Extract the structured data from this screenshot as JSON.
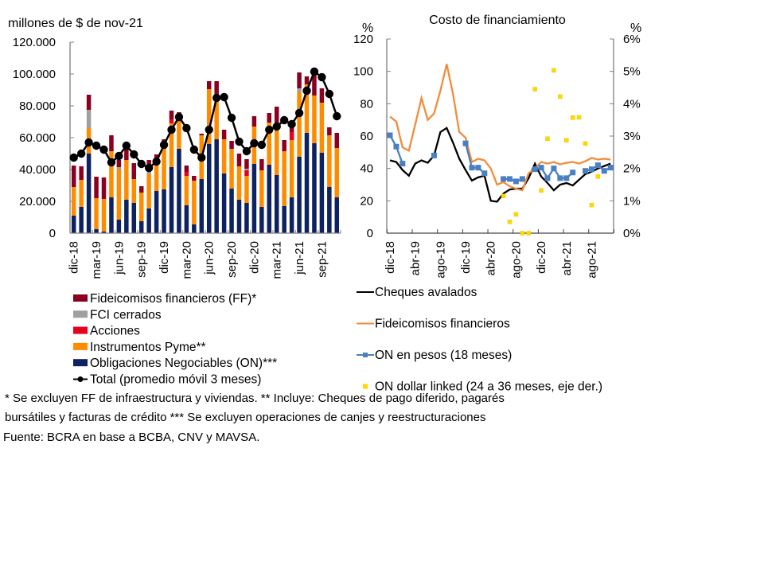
{
  "chart_data": [
    {
      "type": "bar",
      "stacked": true,
      "title": "",
      "ylabel": "millones de $ de nov-21",
      "ylim": [
        0,
        120000
      ],
      "yticks": [
        "0",
        "20.000",
        "40.000",
        "60.000",
        "80.000",
        "100.000",
        "120.000"
      ],
      "ytick_values": [
        0,
        20000,
        40000,
        60000,
        80000,
        100000,
        120000
      ],
      "categories": [
        "dic-18",
        "ene-19",
        "feb-19",
        "mar-19",
        "abr-19",
        "may-19",
        "jun-19",
        "jul-19",
        "ago-19",
        "sep-19",
        "oct-19",
        "nov-19",
        "dic-19",
        "ene-20",
        "feb-20",
        "mar-20",
        "abr-20",
        "may-20",
        "jun-20",
        "jul-20",
        "ago-20",
        "sep-20",
        "oct-20",
        "nov-20",
        "dic-20",
        "ene-21",
        "feb-21",
        "mar-21",
        "abr-21",
        "may-21",
        "jun-21",
        "jul-21",
        "ago-21",
        "sep-21",
        "oct-21",
        "nov-21"
      ],
      "xtick_labels": [
        {
          "index": 0,
          "label": "dic-18"
        },
        {
          "index": 3,
          "label": "mar-19"
        },
        {
          "index": 6,
          "label": "jun-19"
        },
        {
          "index": 9,
          "label": "sep-19"
        },
        {
          "index": 12,
          "label": "dic-19"
        },
        {
          "index": 15,
          "label": "mar-20"
        },
        {
          "index": 18,
          "label": "jun-20"
        },
        {
          "index": 21,
          "label": "sep-20"
        },
        {
          "index": 24,
          "label": "dic-20"
        },
        {
          "index": 27,
          "label": "mar-21"
        },
        {
          "index": 30,
          "label": "jun-21"
        },
        {
          "index": 33,
          "label": "sep-21"
        }
      ],
      "series": [
        {
          "name": "Obligaciones Negociables (ON)***",
          "color": "#0d2260",
          "values": [
            11000,
            16500,
            50000,
            2500,
            1000,
            22500,
            8500,
            21000,
            19000,
            7500,
            15500,
            26500,
            27500,
            41500,
            53000,
            17500,
            5500,
            34000,
            56000,
            59000,
            37500,
            28000,
            21000,
            19000,
            43500,
            16500,
            43000,
            36500,
            17000,
            22500,
            48000,
            63000,
            56500,
            50500,
            29000,
            22500
          ]
        },
        {
          "name": "Instrumentos Pyme**",
          "color": "#ff8c00",
          "values": [
            18000,
            17000,
            16000,
            19500,
            20500,
            29000,
            32000,
            25000,
            15000,
            18000,
            21500,
            16500,
            25500,
            27500,
            18000,
            18500,
            27500,
            27500,
            34500,
            27000,
            21500,
            24500,
            21000,
            17000,
            23500,
            23000,
            26500,
            30000,
            34500,
            36000,
            40500,
            30500,
            30000,
            31500,
            32500,
            31000
          ]
        },
        {
          "name": "Acciones",
          "color": "#e8001c",
          "values": [
            0,
            0,
            0,
            0,
            0,
            0,
            0,
            0,
            0,
            0,
            0,
            0,
            0,
            2500,
            0,
            2500,
            0,
            0,
            0,
            0,
            0,
            0,
            0,
            3500,
            0,
            0,
            0,
            0,
            0,
            5000,
            0,
            0,
            0,
            0,
            0,
            0
          ]
        },
        {
          "name": "FCI cerrados",
          "color": "#a0a0a0",
          "values": [
            0,
            0,
            11500,
            0,
            0,
            0,
            1000,
            0,
            0,
            0,
            1500,
            0,
            0,
            0,
            0,
            0,
            0,
            0,
            0,
            0,
            0,
            500,
            0,
            1000,
            0,
            0,
            0,
            0,
            0,
            0,
            2500,
            0,
            0,
            0,
            0,
            0
          ]
        },
        {
          "name": "Fideicomisos financieros (FF)*",
          "color": "#8b0020",
          "values": [
            13500,
            8500,
            9500,
            13500,
            13500,
            10000,
            4500,
            8500,
            10000,
            4000,
            7500,
            6500,
            6000,
            5500,
            5000,
            4000,
            3000,
            1000,
            5000,
            9500,
            6000,
            5000,
            8000,
            6000,
            6500,
            7000,
            6000,
            13000,
            7000,
            3500,
            10000,
            5000,
            14000,
            9000,
            5000,
            9500
          ]
        }
      ],
      "line": {
        "name": "Total (promedio móvil 3 meses)",
        "color": "#000000",
        "values": [
          47500,
          50000,
          57000,
          55000,
          52500,
          44500,
          48500,
          55000,
          49500,
          43500,
          41000,
          45000,
          55500,
          65000,
          73000,
          66000,
          52500,
          47500,
          65000,
          85000,
          85500,
          72500,
          57500,
          51500,
          56500,
          55500,
          65000,
          67000,
          71000,
          68500,
          75500,
          89500,
          101500,
          98000,
          87500,
          73500
        ]
      },
      "legend": [
        {
          "label": "Fideicomisos financieros (FF)*",
          "color": "#8b0020",
          "kind": "box"
        },
        {
          "label": "FCI cerrados",
          "color": "#a0a0a0",
          "kind": "box"
        },
        {
          "label": "Acciones",
          "color": "#e8001c",
          "kind": "box"
        },
        {
          "label": " Instrumentos Pyme**",
          "color": "#ff8c00",
          "kind": "box"
        },
        {
          "label": "Obligaciones Negociables (ON)***",
          "color": "#0d2260",
          "kind": "box"
        },
        {
          "label": "Total (promedio móvil 3 meses)",
          "color": "#000000",
          "kind": "line-marker"
        }
      ],
      "legend_placement": "bottom"
    },
    {
      "type": "line",
      "title": "Costo de financiamiento",
      "ylabel_left": "%",
      "ylabel_right": "%",
      "ylim": [
        0,
        120
      ],
      "ylim_right": [
        0,
        6
      ],
      "yticks": [
        "0",
        "20",
        "40",
        "60",
        "80",
        "100",
        "120"
      ],
      "ytick_values": [
        0,
        20,
        40,
        60,
        80,
        100,
        120
      ],
      "yticks_right": [
        "0%",
        "1%",
        "2%",
        "3%",
        "4%",
        "5%",
        "6%"
      ],
      "ytick_values_right": [
        0,
        1,
        2,
        3,
        4,
        5,
        6
      ],
      "categories": [
        "dic-18",
        "ene-19",
        "feb-19",
        "mar-19",
        "abr-19",
        "may-19",
        "jun-19",
        "jul-19",
        "ago-19",
        "sep-19",
        "oct-19",
        "nov-19",
        "dic-19",
        "ene-20",
        "feb-20",
        "mar-20",
        "abr-20",
        "may-20",
        "jun-20",
        "jul-20",
        "ago-20",
        "sep-20",
        "oct-20",
        "nov-20",
        "dic-20",
        "ene-21",
        "feb-21",
        "mar-21",
        "abr-21",
        "may-21",
        "jun-21",
        "jul-21",
        "ago-21",
        "sep-21",
        "oct-21",
        "nov-21"
      ],
      "xtick_labels": [
        {
          "index": 0,
          "label": "dic-18"
        },
        {
          "index": 4,
          "label": "abr-19"
        },
        {
          "index": 8,
          "label": "ago-19"
        },
        {
          "index": 12,
          "label": "dic-19"
        },
        {
          "index": 16,
          "label": "abr-20"
        },
        {
          "index": 20,
          "label": "ago-20"
        },
        {
          "index": 24,
          "label": "dic-20"
        },
        {
          "index": 28,
          "label": "abr-21"
        },
        {
          "index": 32,
          "label": "ago-21"
        }
      ],
      "series": [
        {
          "name": "Cheques avalados",
          "color": "#000000",
          "kind": "line",
          "axis": "left",
          "values": [
            45,
            44,
            39,
            35.5,
            43,
            45,
            43.5,
            48,
            62.5,
            65,
            56,
            46,
            39,
            32.5,
            34.5,
            35.5,
            20,
            19.5,
            24.5,
            27,
            27.5,
            27.5,
            34,
            43,
            35,
            31,
            26.5,
            30,
            31,
            29.5,
            33,
            36.5,
            38,
            40,
            41.5,
            43
          ]
        },
        {
          "name": "Fideicomisos financieros",
          "color": "#f28c3c",
          "kind": "line",
          "axis": "left",
          "values": [
            72,
            69,
            53,
            51,
            67,
            83.5,
            70,
            74,
            88,
            104.5,
            86,
            62.5,
            59,
            44,
            46,
            45,
            40,
            30,
            31.5,
            29,
            27.5,
            26.5,
            37,
            40,
            44,
            43,
            44,
            42.5,
            43.5,
            44,
            43,
            44.5,
            46.5,
            45.5,
            46,
            45.5
          ]
        },
        {
          "name": "ON en pesos (18 meses)",
          "color": "#4a7fc1",
          "kind": "line-marker",
          "axis": "left",
          "values": [
            60.5,
            53.5,
            43,
            null,
            null,
            null,
            null,
            48,
            null,
            null,
            null,
            null,
            55.5,
            40.5,
            40.5,
            37,
            null,
            null,
            33.5,
            33.5,
            32,
            33.5,
            null,
            39.5,
            40.5,
            34,
            40,
            34,
            34,
            37.5,
            null,
            38.5,
            39.5,
            42,
            38.5,
            40.5
          ]
        },
        {
          "name": "ON dollar linked (24 a 36 meses, eje der.)",
          "color": "#ffd800",
          "kind": "marker",
          "axis": "right",
          "values": [
            null,
            null,
            null,
            null,
            null,
            null,
            null,
            null,
            null,
            null,
            null,
            null,
            null,
            null,
            null,
            null,
            null,
            null,
            1.15,
            0.35,
            0.58,
            0.0,
            0.0,
            4.45,
            1.32,
            2.92,
            5.03,
            4.22,
            2.87,
            3.57,
            3.58,
            2.77,
            0.87,
            1.75,
            null,
            null
          ]
        }
      ],
      "legend": [
        {
          "label": "Cheques avalados",
          "color": "#000000",
          "kind": "line"
        },
        {
          "label": "Fideicomisos financieros",
          "color": "#f28c3c",
          "kind": "line"
        },
        {
          "label": "ON en pesos (18 meses)",
          "color": "#4a7fc1",
          "kind": "line-marker"
        },
        {
          "label": "ON dollar linked (24 a 36 meses, eje der.)",
          "color": "#ffd800",
          "kind": "marker"
        }
      ],
      "legend_placement": "bottom"
    }
  ],
  "notes": {
    "line1": "* Se excluyen FF de infraestructura y viviendas. ** Incluye: Cheques de pago diferido, pagarés",
    "line2": "bursátiles y facturas de crédito *** Se excluyen operaciones de canjes y reestructuraciones",
    "source": "Fuente: BCRA en base a BCBA, CNV y MAVSA."
  }
}
